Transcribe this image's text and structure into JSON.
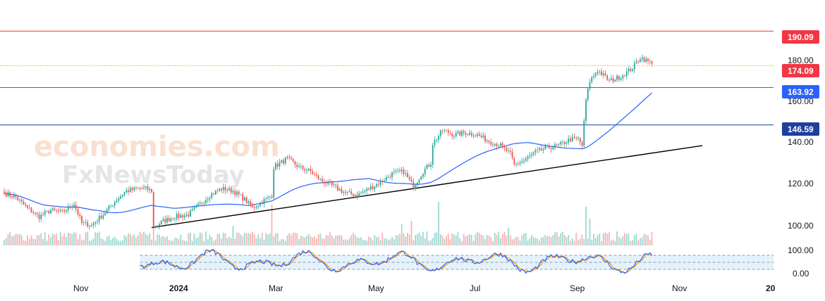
{
  "watermark": {
    "brand": "economies.com",
    "sub": "FxNewsToday"
  },
  "chart_data": {
    "type": "candlestick",
    "ylim": [
      92,
      198
    ],
    "y_ticks": [
      "180.00",
      "160.00",
      "140.00",
      "120.00",
      "100.00"
    ],
    "x_labels": [
      "Nov",
      "2024",
      "Mar",
      "May",
      "Jul",
      "Sep",
      "Nov",
      "20"
    ],
    "price_lines": [
      {
        "value": 190.09,
        "label": "190.09",
        "color": "#e53935",
        "style": "solid"
      },
      {
        "value": 174.09,
        "label": "174.09",
        "color": "#f23645",
        "style": "dotted",
        "line_color": "#ff9800"
      },
      {
        "value": 163.92,
        "label": "163.92",
        "color": "#2962ff",
        "style": "solid"
      },
      {
        "value": 146.59,
        "label": "146.59",
        "color": "#1e3f9e",
        "style": "solid"
      }
    ],
    "trendline": {
      "from": [
        "Dec 2023",
        99
      ],
      "to": [
        "Oct 2024",
        137
      ],
      "color": "#000000"
    },
    "moving_average_color": "#2962ff",
    "colors": {
      "up": "#26a69a",
      "down": "#ef5350",
      "volume_up": "#9fd8d2",
      "volume_down": "#f5b5b3"
    },
    "anchors": [
      [
        0,
        115
      ],
      [
        6,
        113
      ],
      [
        12,
        108
      ],
      [
        18,
        104
      ],
      [
        24,
        107
      ],
      [
        30,
        106
      ],
      [
        36,
        110
      ],
      [
        40,
        101
      ],
      [
        45,
        100
      ],
      [
        52,
        106
      ],
      [
        58,
        112
      ],
      [
        63,
        116
      ],
      [
        69,
        117
      ],
      [
        73,
        117
      ],
      [
        76,
        116
      ],
      [
        77,
        99
      ],
      [
        82,
        102
      ],
      [
        88,
        104
      ],
      [
        95,
        105
      ],
      [
        100,
        109
      ],
      [
        106,
        114
      ],
      [
        112,
        117
      ],
      [
        118,
        116
      ],
      [
        124,
        112
      ],
      [
        128,
        108
      ],
      [
        133,
        111
      ],
      [
        138,
        114
      ],
      [
        139,
        127
      ],
      [
        146,
        131
      ],
      [
        152,
        127
      ],
      [
        158,
        125
      ],
      [
        163,
        121
      ],
      [
        170,
        118
      ],
      [
        176,
        115
      ],
      [
        182,
        114
      ],
      [
        188,
        117
      ],
      [
        194,
        120
      ],
      [
        200,
        124
      ],
      [
        206,
        125
      ],
      [
        211,
        118
      ],
      [
        216,
        125
      ],
      [
        220,
        129
      ],
      [
        221,
        138
      ],
      [
        226,
        144
      ],
      [
        232,
        142
      ],
      [
        238,
        143
      ],
      [
        244,
        142
      ],
      [
        250,
        139
      ],
      [
        256,
        137
      ],
      [
        261,
        133
      ],
      [
        263,
        128
      ],
      [
        268,
        130
      ],
      [
        274,
        134
      ],
      [
        280,
        136
      ],
      [
        286,
        137
      ],
      [
        292,
        140
      ],
      [
        296,
        140
      ],
      [
        298,
        137
      ],
      [
        300,
        158
      ],
      [
        302,
        167
      ],
      [
        306,
        172
      ],
      [
        312,
        167
      ],
      [
        318,
        169
      ],
      [
        324,
        173
      ],
      [
        328,
        178
      ],
      [
        334,
        175
      ]
    ],
    "stochastic": {
      "upper": 80,
      "lower": 20,
      "ticks": [
        "100.00",
        "0.00"
      ],
      "k_color": "#2962ff",
      "d_color": "#ff9800"
    }
  }
}
